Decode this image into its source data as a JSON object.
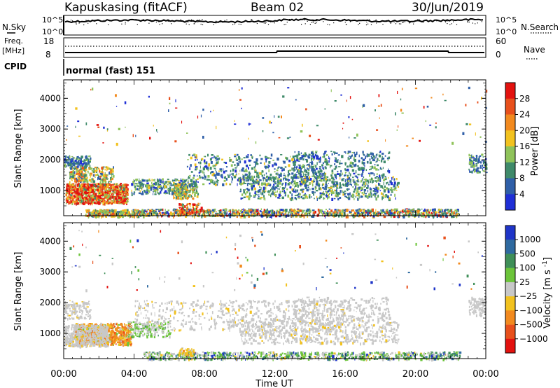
{
  "header": {
    "station": "Kapuskasing (fitACF)",
    "beam": "Beam 02",
    "date": "30/Jun/2019"
  },
  "noise_panel": {
    "left_label": "N.Sky",
    "right_label": "N.Search",
    "left_ticks": [
      "10^5",
      "10^0"
    ],
    "right_ticks": [
      "10^5",
      "10^0"
    ]
  },
  "freq_panel": {
    "left_label_1": "Freq.",
    "left_label_2": "[MHz]",
    "right_label": "Nave",
    "left_ticks": [
      "18",
      "8"
    ],
    "right_ticks": [
      "60",
      "0"
    ]
  },
  "cpid_panel": {
    "label": "CPID",
    "text": "normal (fast) 151"
  },
  "chart_data": [
    {
      "type": "heatmap",
      "name": "power",
      "ylabel": "Slant Range [km]",
      "ylim": [
        180,
        4600
      ],
      "yticks": [
        "1000",
        "2000",
        "3000",
        "4000"
      ],
      "colorbar_label": "Power [dB]",
      "colorbar_ticks": [
        "4",
        "8",
        "12",
        "16",
        "20",
        "24",
        "28"
      ],
      "colors": [
        "#1f2fd6",
        "#2f5fa8",
        "#3f8a6a",
        "#8fc35a",
        "#f2c21f",
        "#f28a1f",
        "#e8501c",
        "#e3120f"
      ],
      "xlim": [
        0,
        24
      ],
      "xticks": [
        "00:00",
        "04:00",
        "08:00",
        "12:00",
        "16:00",
        "20:00",
        "00:00"
      ]
    },
    {
      "type": "heatmap",
      "name": "velocity",
      "ylabel": "Slant Range [km]",
      "ylim": [
        180,
        4600
      ],
      "yticks": [
        "1000",
        "2000",
        "3000",
        "4000"
      ],
      "colorbar_label": "Velocity [m s^-1]",
      "colorbar_ticks": [
        "1000",
        "500",
        "100",
        "25",
        "-25",
        "-100",
        "-500",
        "-1000"
      ],
      "colors": [
        "#1f35c8",
        "#2f6aa0",
        "#3f8f58",
        "#6cc43a",
        "#c8c8c8",
        "#f2c21f",
        "#f28a1f",
        "#e8501c",
        "#e3120f"
      ],
      "xlim": [
        0,
        24
      ],
      "xticks": [
        "00:00",
        "04:00",
        "08:00",
        "12:00",
        "16:00",
        "20:00",
        "00:00"
      ],
      "xlabel": "Time UT"
    }
  ]
}
